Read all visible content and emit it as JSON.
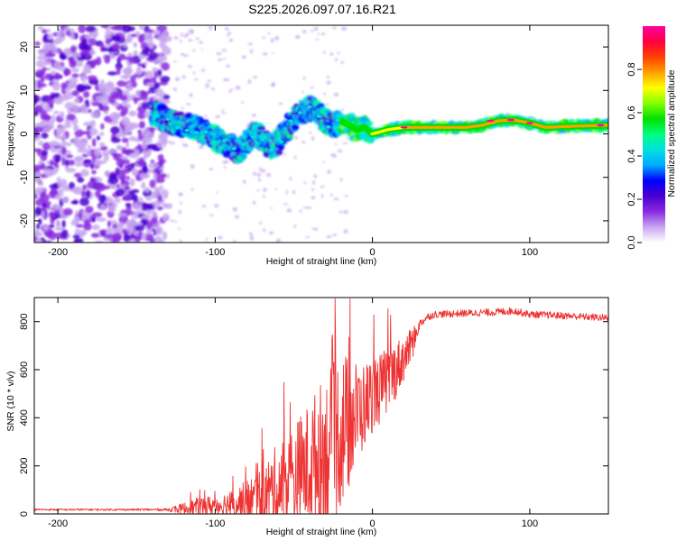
{
  "figure_title": "S225.2026.097.07.16.R21",
  "chart_data": [
    {
      "type": "heatmap",
      "name": "spectrogram",
      "xlabel": "Height of straight line (km)",
      "ylabel": "Frequency (Hz)",
      "xlim": [
        -215,
        150
      ],
      "ylim": [
        -25,
        25
      ],
      "xticks": [
        -200,
        -100,
        0,
        100
      ],
      "yticks": [
        -20,
        -10,
        0,
        10,
        20
      ],
      "colorbar": {
        "label": "Normalized spectral amplitude",
        "ticks": [
          0.0,
          0.2,
          0.4,
          0.6,
          0.8
        ],
        "tick_labels": [
          "0.0",
          "0.2",
          "0.4",
          "0.6",
          "0.8"
        ],
        "range": [
          0,
          1
        ],
        "colormap": [
          "#ffffff",
          "#c8a8f0",
          "#8a2be2",
          "#4b00d0",
          "#0000ff",
          "#00aaff",
          "#00e0e0",
          "#00ff80",
          "#00e000",
          "#80ff00",
          "#ffff00",
          "#ffa000",
          "#ff4000",
          "#ff0040",
          "#ff00a0"
        ]
      },
      "ridge": {
        "x": [
          -140,
          -130,
          -120,
          -110,
          -100,
          -95,
          -90,
          -85,
          -80,
          -75,
          -70,
          -65,
          -60,
          -55,
          -50,
          -45,
          -40,
          -35,
          -30,
          -25,
          -20,
          -15,
          -10,
          -5,
          0,
          10,
          20,
          30,
          40,
          60,
          70,
          80,
          90,
          100,
          110,
          130,
          150
        ],
        "y": [
          5,
          3,
          2,
          1,
          -1,
          -2,
          -3,
          -4,
          -2,
          0,
          -1,
          -3,
          -2,
          1,
          3,
          5,
          6,
          5,
          3,
          2,
          3,
          2,
          1,
          1.5,
          0,
          1,
          1.5,
          1.5,
          1.5,
          1.5,
          2,
          3,
          3.2,
          2.5,
          1.5,
          1.8,
          2
        ]
      }
    },
    {
      "type": "line",
      "name": "snr",
      "xlabel": "Height of straight line (km)",
      "ylabel": "SNR (10 * v/v)",
      "xlim": [
        -215,
        150
      ],
      "ylim": [
        0,
        900
      ],
      "xticks": [
        -200,
        -100,
        0,
        100
      ],
      "yticks": [
        0,
        200,
        400,
        600,
        800
      ],
      "color": "#ee3333",
      "envelope": {
        "x": [
          -215,
          -150,
          -130,
          -120,
          -110,
          -100,
          -90,
          -80,
          -70,
          -60,
          -50,
          -40,
          -35,
          -30,
          -25,
          -20,
          -15,
          -10,
          -5,
          0,
          5,
          10,
          15,
          20,
          25,
          30,
          35,
          40,
          60,
          80,
          90,
          100,
          120,
          150
        ],
        "base": [
          18,
          18,
          18,
          22,
          30,
          35,
          40,
          50,
          70,
          100,
          150,
          200,
          230,
          260,
          300,
          350,
          380,
          420,
          450,
          500,
          520,
          560,
          600,
          650,
          700,
          790,
          820,
          830,
          835,
          840,
          845,
          830,
          825,
          815
        ],
        "amplitude": [
          4,
          4,
          6,
          25,
          40,
          45,
          60,
          90,
          130,
          200,
          230,
          270,
          300,
          320,
          330,
          340,
          280,
          220,
          180,
          160,
          150,
          140,
          120,
          100,
          70,
          20,
          15,
          15,
          15,
          16,
          16,
          15,
          15,
          15
        ]
      }
    }
  ]
}
